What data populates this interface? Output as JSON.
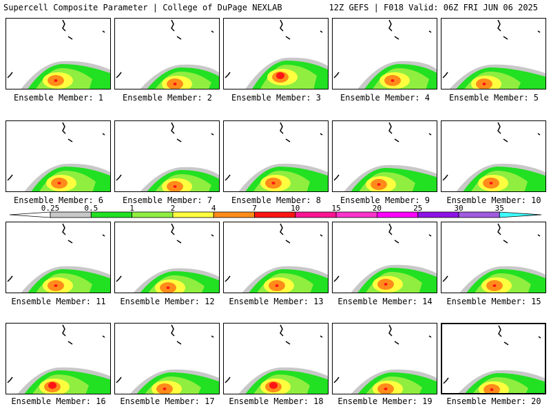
{
  "header": {
    "title_left": "Supercell Composite Parameter | College of DuPage NEXLAB",
    "title_right": "12Z GEFS | F018 Valid: 06Z FRI JUN 06 2025"
  },
  "members": [
    {
      "label": "Ensemble Member: 1"
    },
    {
      "label": "Ensemble Member: 2"
    },
    {
      "label": "Ensemble Member: 3"
    },
    {
      "label": "Ensemble Member: 4"
    },
    {
      "label": "Ensemble Member: 5"
    },
    {
      "label": "Ensemble Member: 6"
    },
    {
      "label": "Ensemble Member: 7"
    },
    {
      "label": "Ensemble Member: 8"
    },
    {
      "label": "Ensemble Member: 9"
    },
    {
      "label": "Ensemble Member: 10"
    },
    {
      "label": "Ensemble Member: 11"
    },
    {
      "label": "Ensemble Member: 12"
    },
    {
      "label": "Ensemble Member: 13"
    },
    {
      "label": "Ensemble Member: 14"
    },
    {
      "label": "Ensemble Member: 15"
    },
    {
      "label": "Ensemble Member: 16"
    },
    {
      "label": "Ensemble Member: 17"
    },
    {
      "label": "Ensemble Member: 18"
    },
    {
      "label": "Ensemble Member: 19"
    },
    {
      "label": "Ensemble Member: 20"
    }
  ],
  "selected_member": 20,
  "colorbar": {
    "ticks": [
      "0.25",
      "0.5",
      "1",
      "2",
      "4",
      "7",
      "10",
      "15",
      "20",
      "25",
      "30",
      "35"
    ],
    "colors": [
      "#c8c8c8",
      "#22e022",
      "#90ee40",
      "#ffff40",
      "#ff8c1a",
      "#ff1414",
      "#ff1493",
      "#ff33cc",
      "#ff00ff",
      "#8c14e6",
      "#a05ae0",
      "#40ffff"
    ]
  }
}
